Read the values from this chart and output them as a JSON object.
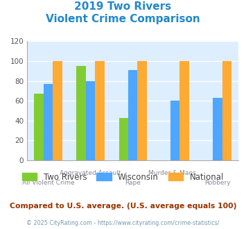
{
  "title_line1": "2019 Two Rivers",
  "title_line2": "Violent Crime Comparison",
  "categories": [
    "All Violent Crime",
    "Aggravated Assault",
    "Rape",
    "Murder & Mans...",
    "Robbery"
  ],
  "series": {
    "Two Rivers": [
      67,
      95,
      43,
      0,
      0
    ],
    "Wisconsin": [
      77,
      80,
      91,
      60,
      63
    ],
    "National": [
      100,
      100,
      100,
      100,
      100
    ]
  },
  "colors": {
    "Two Rivers": "#80cc33",
    "Wisconsin": "#4da6ff",
    "National": "#ffaa33"
  },
  "ylim": [
    0,
    120
  ],
  "yticks": [
    0,
    20,
    40,
    60,
    80,
    100,
    120
  ],
  "plot_area_color": "#ddeeff",
  "title_color": "#2288cc",
  "footer_text": "Compared to U.S. average. (U.S. average equals 100)",
  "footer_color": "#993300",
  "credit_text": "© 2025 CityRating.com - https://www.cityrating.com/crime-statistics/",
  "credit_color": "#7799aa",
  "bar_width": 0.22
}
